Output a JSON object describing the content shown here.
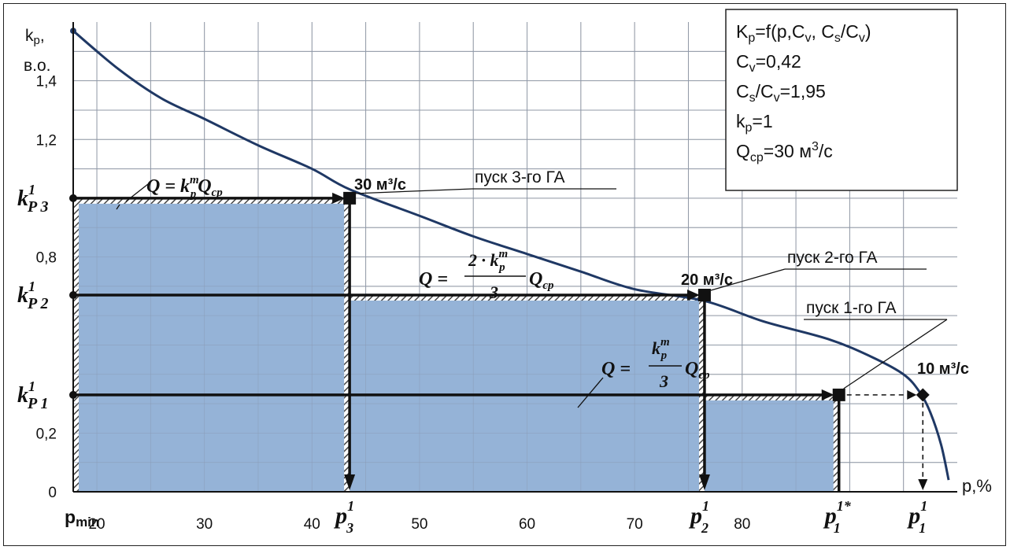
{
  "chart_data": {
    "type": "line",
    "title": "",
    "xlabel": "p,%",
    "ylabel": "k_p, в.о.",
    "xlim": [
      17.8,
      100
    ],
    "ylim": [
      0,
      1.6
    ],
    "grid": true,
    "x_ticks": [
      {
        "value": 17.8,
        "label": "p_min",
        "sub": "min",
        "main": "p"
      },
      {
        "value": 20,
        "label": "20"
      },
      {
        "value": 30,
        "label": "30"
      },
      {
        "value": 40,
        "label": "40"
      },
      {
        "value": 50,
        "label": "50"
      },
      {
        "value": 60,
        "label": "60"
      },
      {
        "value": 70,
        "label": "70"
      },
      {
        "value": 80,
        "label": "80"
      }
    ],
    "y_ticks": [
      {
        "value": 0,
        "label": "0"
      },
      {
        "value": 0.2,
        "label": "0,2"
      },
      {
        "value": 0.8,
        "label": "0,8"
      },
      {
        "value": 1.2,
        "label": "1,2"
      },
      {
        "value": 1.4,
        "label": "1,4"
      }
    ],
    "y_axis_label": {
      "k": "k",
      "sub": "p",
      "comma": ",",
      "line2": "в.о."
    },
    "x_axis_label": "p,%",
    "series": [
      {
        "curve": "supply duration curve",
        "points": [
          [
            17.8,
            1.57
          ],
          [
            22,
            1.44
          ],
          [
            26,
            1.34
          ],
          [
            30,
            1.27
          ],
          [
            35,
            1.18
          ],
          [
            40,
            1.1
          ],
          [
            43.5,
            1.03
          ],
          [
            50,
            0.94
          ],
          [
            55,
            0.87
          ],
          [
            60,
            0.81
          ],
          [
            65,
            0.75
          ],
          [
            70,
            0.69
          ],
          [
            76.5,
            0.65
          ],
          [
            82,
            0.58
          ],
          [
            88,
            0.52
          ],
          [
            92,
            0.46
          ],
          [
            95,
            0.4
          ],
          [
            96.5,
            0.34
          ],
          [
            97.5,
            0.27
          ],
          [
            98.5,
            0.16
          ],
          [
            99.2,
            0.04
          ]
        ]
      }
    ],
    "horizontal_levels": [
      {
        "k_main": "k",
        "k_sub": "P",
        "k_sup": "1",
        "k_idx": "3",
        "value": 1.0
      },
      {
        "k_main": "k",
        "k_sub": "P",
        "k_sup": "1",
        "k_idx": "2",
        "value": 0.67
      },
      {
        "k_main": "k",
        "k_sub": "P",
        "k_sup": "1",
        "k_idx": "1",
        "value": 0.33
      }
    ],
    "vertical_markers": [
      {
        "p_main": "p",
        "p_sup": "1",
        "p_sub": "3",
        "value": 43.5
      },
      {
        "p_main": "p",
        "p_sup": "1",
        "p_sub": "2",
        "value": 76.5
      },
      {
        "p_main": "p",
        "p_sup": "1*",
        "p_sub": "1",
        "value": 89.0
      },
      {
        "p_main": "p",
        "p_sup": "1",
        "p_sub": "1",
        "value": 96.8
      }
    ],
    "point_labels": [
      {
        "text": "30 м³/с",
        "x": 43.5,
        "y": 1.0
      },
      {
        "text": "20 м³/с",
        "x": 76.5,
        "y": 0.67
      },
      {
        "text": "10 м³/с",
        "x": 96.8,
        "y": 0.33
      }
    ],
    "callouts": [
      {
        "text": "пуск 3-го ГА"
      },
      {
        "text": "пуск 2-го ГА"
      },
      {
        "text": "пуск 1-го ГА"
      }
    ],
    "formulas": [
      {
        "lhs": "Q = ",
        "num": "k",
        "num_sup": "m",
        "num_sub": "p",
        "rest": "Q",
        "rest_sub": "cp"
      },
      {
        "lhs": "Q = ",
        "num": "2 · k",
        "num_sup": "m",
        "num_sub": "p",
        "den": "3",
        "rest": "Q",
        "rest_sub": "cp"
      },
      {
        "lhs": "Q = ",
        "num": "k",
        "num_sup": "m",
        "num_sub": "p",
        "den": "3",
        "rest": "Q",
        "rest_sub": "cp"
      }
    ],
    "info_box": [
      {
        "parts": [
          [
            "K",
            ""
          ],
          [
            "p",
            "sub"
          ],
          [
            "=f(p,C",
            ""
          ],
          [
            "v",
            "sub"
          ],
          [
            ", C",
            ""
          ],
          [
            "s",
            "sub"
          ],
          [
            "/C",
            ""
          ],
          [
            "v",
            "sub"
          ],
          [
            ")",
            ""
          ]
        ]
      },
      {
        "parts": [
          [
            "C",
            ""
          ],
          [
            "v",
            "sub"
          ],
          [
            "=0,42",
            ""
          ]
        ]
      },
      {
        "parts": [
          [
            "C",
            ""
          ],
          [
            "s",
            "sub"
          ],
          [
            "/C",
            ""
          ],
          [
            "v",
            "sub"
          ],
          [
            "=1,95",
            ""
          ]
        ]
      },
      {
        "parts": [
          [
            "k",
            ""
          ],
          [
            "p",
            "sub"
          ],
          [
            "=1",
            ""
          ]
        ]
      },
      {
        "parts": [
          [
            "Q",
            ""
          ],
          [
            "cp",
            "sub"
          ],
          [
            "=30 м",
            ""
          ],
          [
            "3",
            "sup"
          ],
          [
            "/с",
            ""
          ]
        ]
      }
    ],
    "colors": {
      "area_fill": "#95b3d7",
      "curve": "#1f3864",
      "axes": "#111111",
      "grid": "#999999"
    }
  }
}
